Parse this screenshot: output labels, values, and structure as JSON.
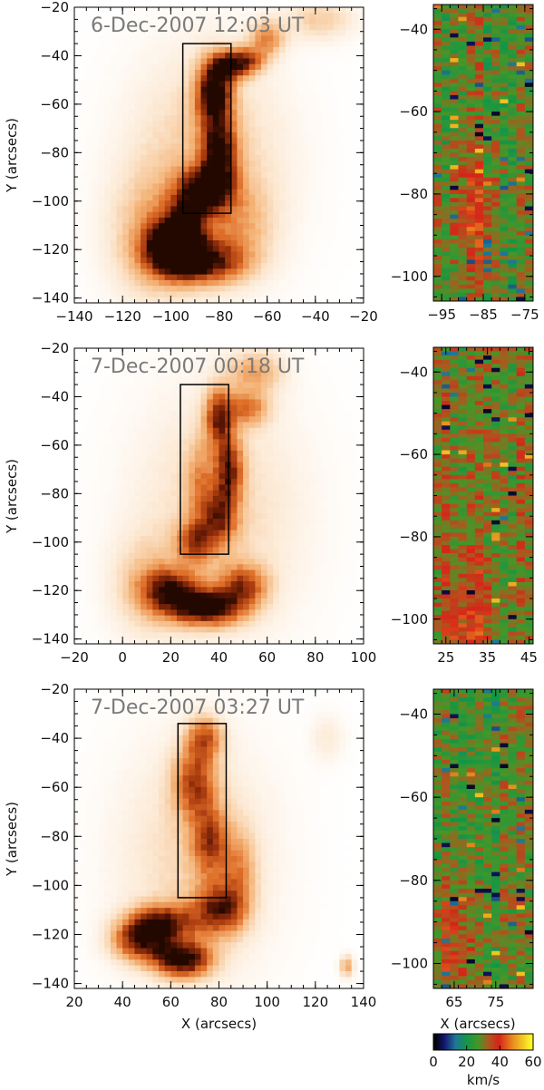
{
  "chart_data": [
    {
      "type": "heatmap",
      "title": "6-Dec-2007 12:03 UT",
      "xlabel": "",
      "ylabel": "Y (arcsecs)",
      "xlim": [
        -140,
        -20
      ],
      "ylim": [
        -142,
        -20
      ],
      "xticks": [
        -140,
        -120,
        -100,
        -80,
        -60,
        -40,
        -20
      ],
      "yticks": [
        -140,
        -120,
        -100,
        -80,
        -60,
        -40,
        -20
      ],
      "box": {
        "x": [
          -95,
          -75
        ],
        "y": [
          -105,
          -35
        ]
      },
      "blobs": [
        {
          "x": -100,
          "y": -118,
          "sx": 7,
          "sy": 7,
          "w": 1.0
        },
        {
          "x": -88,
          "y": -125,
          "sx": 12,
          "sy": 6,
          "w": 0.9
        },
        {
          "x": -93,
          "y": -108,
          "sx": 6,
          "sy": 9,
          "w": 0.6
        },
        {
          "x": -85,
          "y": -95,
          "sx": 7,
          "sy": 6,
          "w": 0.85
        },
        {
          "x": -80,
          "y": -80,
          "sx": 5,
          "sy": 10,
          "w": 0.85
        },
        {
          "x": -82,
          "y": -55,
          "sx": 5,
          "sy": 9,
          "w": 1.0
        },
        {
          "x": -76,
          "y": -44,
          "sx": 5,
          "sy": 4,
          "w": 0.7
        },
        {
          "x": -68,
          "y": -42,
          "sx": 5,
          "sy": 4,
          "w": 0.55
        },
        {
          "x": -60,
          "y": -33,
          "sx": 5,
          "sy": 5,
          "w": 0.45
        },
        {
          "x": -38,
          "y": -25,
          "sx": 10,
          "sy": 6,
          "w": 0.25
        },
        {
          "x": -85,
          "y": -85,
          "sx": 22,
          "sy": 32,
          "w": 0.28
        },
        {
          "x": -108,
          "y": -115,
          "sx": 12,
          "sy": 18,
          "w": 0.3
        },
        {
          "x": -72,
          "y": -110,
          "sx": 10,
          "sy": 12,
          "w": 0.25
        }
      ]
    },
    {
      "type": "heatmap",
      "title": "7-Dec-2007 00:18 UT",
      "xlabel": "",
      "ylabel": "Y (arcsecs)",
      "xlim": [
        -20,
        100
      ],
      "ylim": [
        -142,
        -20
      ],
      "xticks": [
        -20,
        0,
        20,
        40,
        60,
        80,
        100
      ],
      "yticks": [
        -140,
        -120,
        -100,
        -80,
        -60,
        -40,
        -20
      ],
      "box": {
        "x": [
          24,
          44
        ],
        "y": [
          -105,
          -35
        ]
      },
      "blobs": [
        {
          "x": 35,
          "y": -127,
          "sx": 10,
          "sy": 5,
          "w": 1.0
        },
        {
          "x": 20,
          "y": -120,
          "sx": 8,
          "sy": 6,
          "w": 0.75
        },
        {
          "x": 50,
          "y": -118,
          "sx": 7,
          "sy": 6,
          "w": 0.6
        },
        {
          "x": 30,
          "y": -100,
          "sx": 5,
          "sy": 6,
          "w": 0.55
        },
        {
          "x": 40,
          "y": -90,
          "sx": 5,
          "sy": 8,
          "w": 0.6
        },
        {
          "x": 44,
          "y": -70,
          "sx": 4,
          "sy": 10,
          "w": 0.7
        },
        {
          "x": 40,
          "y": -48,
          "sx": 4,
          "sy": 8,
          "w": 0.7
        },
        {
          "x": 52,
          "y": -45,
          "sx": 6,
          "sy": 5,
          "w": 0.45
        },
        {
          "x": 55,
          "y": -30,
          "sx": 8,
          "sy": 6,
          "w": 0.35
        },
        {
          "x": 32,
          "y": -75,
          "sx": 4,
          "sy": 12,
          "w": 0.3
        },
        {
          "x": 40,
          "y": -88,
          "sx": 24,
          "sy": 36,
          "w": 0.22
        },
        {
          "x": 10,
          "y": -118,
          "sx": 10,
          "sy": 14,
          "w": 0.25
        }
      ]
    },
    {
      "type": "heatmap",
      "title": "7-Dec-2007 03:27 UT",
      "xlabel": "X (arcsecs)",
      "ylabel": "Y (arcsecs)",
      "xlim": [
        20,
        140
      ],
      "ylim": [
        -142,
        -20
      ],
      "xticks": [
        20,
        40,
        60,
        80,
        100,
        120,
        140
      ],
      "yticks": [
        -140,
        -120,
        -100,
        -80,
        -60,
        -40,
        -20
      ],
      "box": {
        "x": [
          63,
          83
        ],
        "y": [
          -105,
          -34
        ]
      },
      "blobs": [
        {
          "x": 65,
          "y": -130,
          "sx": 8,
          "sy": 5,
          "w": 1.0
        },
        {
          "x": 48,
          "y": -122,
          "sx": 8,
          "sy": 6,
          "w": 0.85
        },
        {
          "x": 58,
          "y": -115,
          "sx": 9,
          "sy": 5,
          "w": 0.7
        },
        {
          "x": 80,
          "y": -110,
          "sx": 7,
          "sy": 7,
          "w": 0.7
        },
        {
          "x": 76,
          "y": -82,
          "sx": 5,
          "sy": 10,
          "w": 0.55
        },
        {
          "x": 70,
          "y": -58,
          "sx": 6,
          "sy": 10,
          "w": 0.6
        },
        {
          "x": 74,
          "y": -40,
          "sx": 5,
          "sy": 6,
          "w": 0.55
        },
        {
          "x": 88,
          "y": -95,
          "sx": 5,
          "sy": 12,
          "w": 0.35
        },
        {
          "x": 133,
          "y": -133,
          "sx": 2,
          "sy": 3,
          "w": 0.4
        },
        {
          "x": 125,
          "y": -40,
          "sx": 5,
          "sy": 7,
          "w": 0.12
        },
        {
          "x": 70,
          "y": -90,
          "sx": 22,
          "sy": 34,
          "w": 0.22
        }
      ]
    },
    {
      "type": "heatmap",
      "title": "",
      "xlabel": "",
      "ylabel": "",
      "xlim": [
        -97,
        -73
      ],
      "ylim": [
        -106,
        -34
      ],
      "xticks": [
        -95,
        -85,
        -75
      ],
      "yticks": [
        -100,
        -80,
        -60,
        -40
      ],
      "colorbar_units": "km/s",
      "vmin": 0,
      "vmax": 60,
      "columns": 12,
      "rows": 72,
      "base_velocity": 28,
      "hot_x": -87,
      "hot_y": -85
    },
    {
      "type": "heatmap",
      "title": "",
      "xlabel": "",
      "ylabel": "",
      "xlim": [
        22,
        46
      ],
      "ylim": [
        -106,
        -34
      ],
      "xticks": [
        25,
        35,
        45
      ],
      "yticks": [
        -100,
        -80,
        -60,
        -40
      ],
      "colorbar_units": "km/s",
      "vmin": 0,
      "vmax": 60,
      "columns": 12,
      "rows": 72,
      "base_velocity": 30,
      "hot_x": 30,
      "hot_y": -100
    },
    {
      "type": "heatmap",
      "title": "",
      "xlabel": "X (arcsecs)",
      "ylabel": "",
      "xlim": [
        60,
        84
      ],
      "ylim": [
        -106,
        -34
      ],
      "xticks": [
        65,
        75
      ],
      "yticks": [
        -100,
        -80,
        -60,
        -40
      ],
      "colorbar_units": "km/s",
      "vmin": 0,
      "vmax": 60,
      "columns": 12,
      "rows": 72,
      "base_velocity": 27,
      "hot_x": 65,
      "hot_y": -95
    }
  ],
  "colorbar": {
    "ticks": [
      0,
      20,
      40,
      60
    ],
    "label": "km/s",
    "range": [
      0,
      60
    ]
  },
  "colors": {
    "intensity_low": "#ffffff",
    "intensity_mid": "#e07a2a",
    "intensity_high": "#2a0800",
    "box": "#000000"
  }
}
